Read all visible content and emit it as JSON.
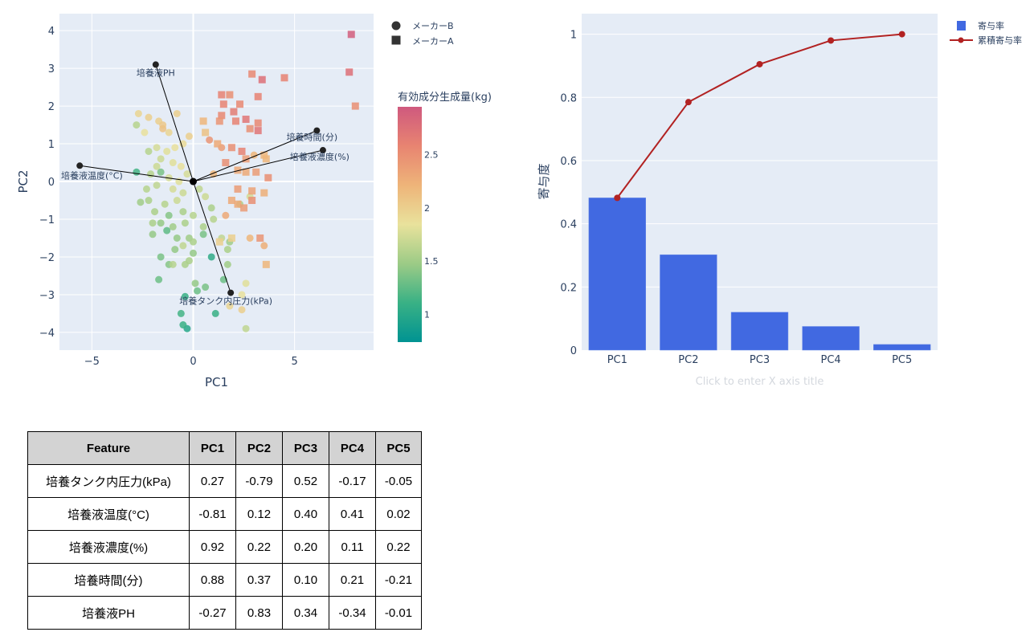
{
  "chart_data": [
    {
      "type": "scatter",
      "title": "",
      "xlabel": "PC1",
      "ylabel": "PC2",
      "xlim": [
        -6.6,
        8.9
      ],
      "ylim": [
        -4.47,
        4.45
      ],
      "xticks": [
        -5,
        0,
        5
      ],
      "xtick_labels": [
        "−5",
        "0",
        "5"
      ],
      "yticks": [
        -4,
        -3,
        -2,
        -1,
        0,
        1,
        2,
        3,
        4
      ],
      "ytick_labels": [
        "−4",
        "−3",
        "−2",
        "−1",
        "0",
        "1",
        "2",
        "3",
        "4"
      ],
      "grid": true,
      "legend_position": "top-right",
      "colorbar": {
        "title": "有効成分生成量(kg)",
        "range": [
          0.74,
          2.95
        ],
        "ticks": [
          1,
          1.5,
          2,
          2.5
        ],
        "tick_labels": [
          "1",
          "1.5",
          "2",
          "2.5"
        ],
        "colors": [
          "#009392",
          "#39b185",
          "#9ccb86",
          "#e9e29c",
          "#eeb479",
          "#e88471",
          "#cf597e"
        ]
      },
      "series": [
        {
          "name": "メーカーB",
          "marker": "circle",
          "points": [
            [
              -2.7,
              1.8,
              1.95
            ],
            [
              -2.2,
              1.7,
              2.0
            ],
            [
              -1.7,
              1.6,
              2.0
            ],
            [
              -1.5,
              1.5,
              2.05
            ],
            [
              -2.8,
              1.5,
              1.6
            ],
            [
              -2.4,
              1.3,
              1.85
            ],
            [
              -1.2,
              1.3,
              1.95
            ],
            [
              -0.8,
              1.8,
              2.0
            ],
            [
              -2.2,
              0.8,
              1.6
            ],
            [
              -1.8,
              0.9,
              1.75
            ],
            [
              -1.3,
              0.8,
              1.8
            ],
            [
              -0.9,
              0.9,
              1.85
            ],
            [
              -0.5,
              1.0,
              1.9
            ],
            [
              -0.2,
              1.2,
              2.0
            ],
            [
              -1.6,
              0.6,
              1.7
            ],
            [
              -1.0,
              0.5,
              1.8
            ],
            [
              -0.6,
              0.4,
              1.85
            ],
            [
              -2.8,
              0.25,
              1.15
            ],
            [
              -1.6,
              0.25,
              1.35
            ],
            [
              -1.8,
              0.4,
              1.7
            ],
            [
              -2.1,
              0.2,
              1.6
            ],
            [
              -1.2,
              0.1,
              1.75
            ],
            [
              -0.7,
              0.0,
              1.8
            ],
            [
              -0.3,
              0.2,
              1.75
            ],
            [
              -2.3,
              -0.2,
              1.6
            ],
            [
              -1.8,
              -0.1,
              1.65
            ],
            [
              -1.0,
              -0.2,
              1.75
            ],
            [
              -0.5,
              -0.3,
              1.7
            ],
            [
              0.3,
              -0.2,
              1.65
            ],
            [
              0.6,
              -0.4,
              1.7
            ],
            [
              -2.2,
              -0.5,
              1.55
            ],
            [
              -1.4,
              -0.6,
              1.6
            ],
            [
              -0.8,
              -0.5,
              1.7
            ],
            [
              -2.6,
              -0.55,
              1.5
            ],
            [
              -1.9,
              -0.8,
              1.55
            ],
            [
              -1.2,
              -0.9,
              1.4
            ],
            [
              -0.5,
              -0.8,
              1.55
            ],
            [
              0.0,
              -0.9,
              1.6
            ],
            [
              0.9,
              -0.7,
              1.55
            ],
            [
              -2.0,
              -1.1,
              1.55
            ],
            [
              -1.6,
              -1.1,
              1.45
            ],
            [
              -1.0,
              -1.2,
              1.5
            ],
            [
              -0.4,
              -1.1,
              1.55
            ],
            [
              0.5,
              -1.2,
              1.55
            ],
            [
              1.0,
              -1.0,
              1.6
            ],
            [
              -2.0,
              -1.4,
              1.45
            ],
            [
              -1.3,
              -1.3,
              1.25
            ],
            [
              -0.8,
              -1.5,
              1.45
            ],
            [
              -0.2,
              -1.5,
              1.5
            ],
            [
              0.5,
              -1.4,
              1.35
            ],
            [
              1.4,
              -1.5,
              1.65
            ],
            [
              -0.5,
              -1.7,
              1.65
            ],
            [
              0.0,
              -1.6,
              1.55
            ],
            [
              -1.6,
              -2.0,
              1.35
            ],
            [
              -0.9,
              -1.8,
              1.45
            ],
            [
              -0.2,
              -2.1,
              1.55
            ],
            [
              1.8,
              -1.6,
              1.5
            ],
            [
              -1.7,
              -2.6,
              1.3
            ],
            [
              -1.2,
              -2.2,
              1.4
            ],
            [
              -1.0,
              -2.2,
              1.6
            ],
            [
              -0.4,
              -2.2,
              1.55
            ],
            [
              0.0,
              -1.9,
              1.45
            ],
            [
              1.7,
              -2.2,
              1.5
            ],
            [
              0.2,
              -2.9,
              1.3
            ],
            [
              0.1,
              -2.7,
              1.45
            ],
            [
              0.6,
              -2.8,
              1.35
            ],
            [
              1.5,
              -2.6,
              1.3
            ],
            [
              2.6,
              -2.7,
              1.8
            ],
            [
              2.4,
              -3.0,
              1.85
            ],
            [
              -0.4,
              -3.05,
              1.1
            ],
            [
              -0.6,
              -3.5,
              1.15
            ],
            [
              -0.3,
              -3.9,
              1.0
            ],
            [
              -0.5,
              -3.8,
              1.1
            ],
            [
              1.1,
              -3.5,
              1.1
            ],
            [
              2.6,
              -3.9,
              1.65
            ],
            [
              2.4,
              -3.4,
              2.0
            ],
            [
              0.9,
              -2.0,
              1.05
            ],
            [
              2.3,
              -0.6,
              1.55
            ],
            [
              2.8,
              -0.4,
              1.75
            ],
            [
              1.7,
              -1.8,
              1.55
            ],
            [
              1.8,
              -3.3,
              1.95
            ],
            [
              0.8,
              1.1,
              2.45
            ],
            [
              1.4,
              0.9,
              2.4
            ],
            [
              1.6,
              -0.9,
              2.3
            ],
            [
              2.8,
              -1.5,
              2.2
            ],
            [
              3.5,
              -1.7,
              2.25
            ],
            [
              1.0,
              0.2,
              2.2
            ],
            [
              3.0,
              0.7,
              2.2
            ],
            [
              -1.5,
              1.4,
              2.1
            ]
          ]
        },
        {
          "name": "メーカーA",
          "marker": "square",
          "points": [
            [
              7.8,
              3.9,
              2.9
            ],
            [
              7.7,
              2.9,
              2.75
            ],
            [
              8.0,
              2.0,
              2.5
            ],
            [
              3.4,
              2.7,
              2.75
            ],
            [
              4.5,
              2.75,
              2.6
            ],
            [
              2.9,
              2.85,
              2.55
            ],
            [
              3.2,
              2.25,
              2.6
            ],
            [
              1.4,
              2.3,
              2.6
            ],
            [
              1.8,
              2.3,
              2.5
            ],
            [
              1.5,
              2.05,
              2.6
            ],
            [
              2.3,
              2.05,
              2.55
            ],
            [
              2.0,
              1.85,
              2.65
            ],
            [
              1.4,
              1.75,
              2.55
            ],
            [
              2.6,
              1.65,
              2.7
            ],
            [
              3.2,
              1.55,
              2.55
            ],
            [
              3.2,
              1.35,
              2.7
            ],
            [
              2.1,
              1.6,
              2.6
            ],
            [
              1.3,
              1.6,
              2.45
            ],
            [
              2.8,
              1.4,
              2.5
            ],
            [
              0.5,
              1.6,
              2.2
            ],
            [
              0.6,
              1.3,
              2.1
            ],
            [
              1.2,
              1.0,
              2.3
            ],
            [
              1.9,
              0.9,
              2.5
            ],
            [
              2.4,
              0.8,
              2.6
            ],
            [
              2.6,
              0.6,
              2.4
            ],
            [
              3.6,
              0.6,
              2.2
            ],
            [
              3.5,
              0.7,
              2.2
            ],
            [
              1.6,
              0.5,
              2.5
            ],
            [
              2.2,
              0.3,
              2.3
            ],
            [
              2.6,
              0.25,
              2.3
            ],
            [
              3.1,
              0.25,
              2.4
            ],
            [
              3.7,
              0.1,
              2.5
            ],
            [
              2.2,
              -0.2,
              2.4
            ],
            [
              2.9,
              -0.25,
              2.35
            ],
            [
              3.5,
              -0.3,
              2.25
            ],
            [
              1.9,
              -0.5,
              2.3
            ],
            [
              2.9,
              -0.5,
              2.5
            ],
            [
              2.2,
              -0.6,
              2.3
            ],
            [
              3.3,
              -1.5,
              2.45
            ],
            [
              3.6,
              -2.2,
              2.2
            ],
            [
              1.9,
              -1.5,
              2.0
            ],
            [
              1.3,
              -1.6,
              2.0
            ],
            [
              2.5,
              -0.7,
              2.4
            ]
          ]
        }
      ],
      "loadings": [
        {
          "label": "培養液PH",
          "x": -1.85,
          "y": 3.1
        },
        {
          "label": "培養液温度(°C)",
          "x": -5.6,
          "y": 0.42
        },
        {
          "label": "培養時間(分)",
          "x": 6.1,
          "y": 1.35
        },
        {
          "label": "培養液濃度(%)",
          "x": 6.4,
          "y": 0.83
        },
        {
          "label": "培養タンク内圧力(kPa)",
          "x": 1.85,
          "y": -2.95
        }
      ]
    },
    {
      "type": "bar",
      "title": "",
      "xlabel": "Click to enter X axis title",
      "ylabel": "寄与度",
      "categories": [
        "PC1",
        "PC2",
        "PC3",
        "PC4",
        "PC5"
      ],
      "ylim": [
        0,
        1.065
      ],
      "yticks": [
        0,
        0.2,
        0.4,
        0.6,
        0.8,
        1
      ],
      "ytick_labels": [
        "0",
        "0.2",
        "0.4",
        "0.6",
        "0.8",
        "1"
      ],
      "grid": true,
      "legend_position": "top-right",
      "series": [
        {
          "name": "寄与率",
          "type": "bar",
          "color": "#4169e1",
          "values": [
            0.482,
            0.302,
            0.12,
            0.075,
            0.018
          ]
        },
        {
          "name": "累積寄与率",
          "type": "line",
          "color": "#b22222",
          "values": [
            0.482,
            0.785,
            0.905,
            0.98,
            1.0
          ]
        }
      ]
    }
  ],
  "table": {
    "headers": [
      "Feature",
      "PC1",
      "PC2",
      "PC3",
      "PC4",
      "PC5"
    ],
    "rows": [
      [
        "培養タンク内圧力(kPa)",
        "0.27",
        "-0.79",
        "0.52",
        "-0.17",
        "-0.05"
      ],
      [
        "培養液温度(°C)",
        "-0.81",
        "0.12",
        "0.40",
        "0.41",
        "0.02"
      ],
      [
        "培養液濃度(%)",
        "0.92",
        "0.22",
        "0.20",
        "0.11",
        "0.22"
      ],
      [
        "培養時間(分)",
        "0.88",
        "0.37",
        "0.10",
        "0.21",
        "-0.21"
      ],
      [
        "培養液PH",
        "-0.27",
        "0.83",
        "0.34",
        "-0.34",
        "-0.01"
      ]
    ]
  }
}
